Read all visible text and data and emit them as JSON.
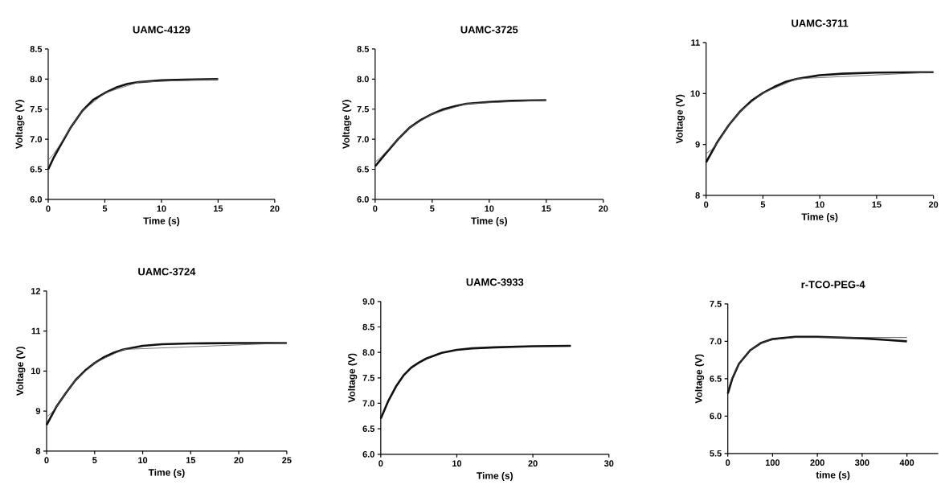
{
  "chart_data": [
    {
      "type": "line",
      "title": "UAMC-4129",
      "xlabel": "Time (s)",
      "ylabel": "Voltage  (V)",
      "xlim": [
        0,
        20
      ],
      "ylim": [
        6.0,
        8.5
      ],
      "xticks": [
        0,
        5,
        10,
        15,
        20
      ],
      "yticks": [
        {
          "value": 6.0,
          "label": "6.0"
        },
        {
          "value": 6.5,
          "label": "6.5"
        },
        {
          "value": 7.0,
          "label": "7.0"
        },
        {
          "value": 7.5,
          "label": "7.5"
        },
        {
          "value": 8.0,
          "label": "8.0"
        },
        {
          "value": 8.5,
          "label": "8.5"
        }
      ],
      "series": [
        {
          "color": "#111111",
          "x": [
            0,
            0.5,
            1,
            2,
            3,
            4,
            5,
            6,
            7,
            8,
            10,
            12,
            15
          ],
          "values": [
            6.5,
            6.7,
            6.87,
            7.2,
            7.47,
            7.66,
            7.77,
            7.86,
            7.92,
            7.95,
            7.98,
            7.99,
            8.0
          ]
        },
        {
          "color": "#666666",
          "x": [
            0,
            0.5,
            1,
            2,
            3,
            5,
            8,
            15
          ],
          "values": [
            6.65,
            6.76,
            6.9,
            7.2,
            7.47,
            7.77,
            7.95,
            8.0
          ]
        }
      ]
    },
    {
      "type": "line",
      "title": "UAMC-3725",
      "xlabel": "Time (s)",
      "ylabel": "Voltage (V)",
      "xlim": [
        0,
        20
      ],
      "ylim": [
        6.0,
        8.5
      ],
      "xticks": [
        0,
        5,
        10,
        15,
        20
      ],
      "yticks": [
        {
          "value": 6.0,
          "label": "6.0"
        },
        {
          "value": 6.5,
          "label": "6.5"
        },
        {
          "value": 7.0,
          "label": "7.0"
        },
        {
          "value": 7.5,
          "label": "7.5"
        },
        {
          "value": 8.0,
          "label": "8.0"
        },
        {
          "value": 8.5,
          "label": "8.5"
        }
      ],
      "series": [
        {
          "color": "#111111",
          "x": [
            0,
            1,
            2,
            3,
            4,
            5,
            6,
            7,
            8,
            10,
            12,
            15
          ],
          "values": [
            6.55,
            6.78,
            7.0,
            7.19,
            7.32,
            7.42,
            7.5,
            7.55,
            7.59,
            7.62,
            7.64,
            7.65
          ]
        },
        {
          "color": "#666666",
          "x": [
            0,
            0.5,
            1,
            2,
            3,
            5,
            8,
            15
          ],
          "values": [
            6.62,
            6.7,
            6.8,
            7.0,
            7.19,
            7.42,
            7.59,
            7.65
          ]
        }
      ]
    },
    {
      "type": "line",
      "title": "UAMC-3711",
      "xlabel": "Time (s)",
      "ylabel": "Voltage (V)",
      "xlim": [
        0,
        20
      ],
      "ylim": [
        8,
        11
      ],
      "xticks": [
        0,
        5,
        10,
        15,
        20
      ],
      "yticks": [
        8,
        9,
        10,
        11
      ],
      "series": [
        {
          "color": "#111111",
          "x": [
            0,
            1,
            2,
            3,
            4,
            5,
            6,
            7,
            8,
            10,
            12,
            15,
            20
          ],
          "values": [
            8.65,
            9.05,
            9.38,
            9.65,
            9.86,
            10.01,
            10.13,
            10.23,
            10.29,
            10.36,
            10.39,
            10.41,
            10.42
          ]
        },
        {
          "color": "#666666",
          "x": [
            0,
            0.5,
            1,
            2,
            3,
            5,
            8,
            20
          ],
          "values": [
            8.82,
            8.9,
            9.03,
            9.38,
            9.65,
            10.01,
            10.29,
            10.42
          ]
        }
      ]
    },
    {
      "type": "line",
      "title": "UAMC-3724",
      "xlabel": "Time (s)",
      "ylabel": "Voltage (V)",
      "xlim": [
        0,
        25
      ],
      "ylim": [
        8,
        12
      ],
      "xticks": [
        0,
        5,
        10,
        15,
        20,
        25
      ],
      "yticks": [
        8,
        9,
        10,
        11,
        12
      ],
      "series": [
        {
          "color": "#111111",
          "x": [
            0,
            1,
            2,
            3,
            4,
            5,
            6,
            7,
            8,
            10,
            12,
            15,
            20,
            25
          ],
          "values": [
            8.65,
            9.1,
            9.45,
            9.77,
            10.01,
            10.2,
            10.35,
            10.46,
            10.54,
            10.63,
            10.67,
            10.69,
            10.7,
            10.7
          ]
        },
        {
          "color": "#666666",
          "x": [
            0,
            0.5,
            1,
            2,
            3,
            5,
            8,
            25
          ],
          "values": [
            8.85,
            8.95,
            9.1,
            9.45,
            9.77,
            10.2,
            10.54,
            10.7
          ]
        }
      ]
    },
    {
      "type": "line",
      "title": "UAMC-3933",
      "xlabel": "Time (s)",
      "ylabel": "Voltage (V)",
      "xlim": [
        0,
        30
      ],
      "ylim": [
        6.0,
        9.0
      ],
      "xticks": [
        0,
        10,
        20,
        30
      ],
      "yticks": [
        {
          "value": 6.0,
          "label": "6.0"
        },
        {
          "value": 6.5,
          "label": "6.5"
        },
        {
          "value": 7.0,
          "label": "7.0"
        },
        {
          "value": 7.5,
          "label": "7.5"
        },
        {
          "value": 8.0,
          "label": "8.0"
        },
        {
          "value": 8.5,
          "label": "8.5"
        },
        {
          "value": 9.0,
          "label": "9.0"
        }
      ],
      "series": [
        {
          "color": "#111111",
          "x": [
            0,
            1,
            2,
            3,
            4,
            5,
            6,
            8,
            10,
            12,
            15,
            20,
            25
          ],
          "values": [
            6.7,
            7.05,
            7.33,
            7.55,
            7.7,
            7.8,
            7.88,
            7.99,
            8.05,
            8.08,
            8.1,
            8.12,
            8.13
          ]
        }
      ]
    },
    {
      "type": "line",
      "title": "r-TCO-PEG-4",
      "xlabel": "time (s)",
      "ylabel": "Voltage (V)",
      "xlim": [
        0,
        470
      ],
      "ylim": [
        5.5,
        7.5
      ],
      "xticks": [
        0,
        100,
        200,
        300,
        400
      ],
      "yticks": [
        {
          "value": 5.5,
          "label": "5.5"
        },
        {
          "value": 6.0,
          "label": "6.0"
        },
        {
          "value": 6.5,
          "label": "6.5"
        },
        {
          "value": 7.0,
          "label": "7.0"
        },
        {
          "value": 7.5,
          "label": "7.5"
        }
      ],
      "series": [
        {
          "color": "#111111",
          "x": [
            0,
            10,
            25,
            50,
            75,
            100,
            150,
            200,
            250,
            300,
            350,
            400
          ],
          "values": [
            6.3,
            6.5,
            6.7,
            6.88,
            6.98,
            7.03,
            7.06,
            7.06,
            7.05,
            7.04,
            7.02,
            7.0
          ]
        },
        {
          "color": "#444444",
          "x": [
            0,
            10,
            25,
            50,
            75,
            100,
            150,
            200,
            300,
            400
          ],
          "values": [
            6.35,
            6.52,
            6.7,
            6.88,
            6.98,
            7.02,
            7.05,
            7.05,
            7.05,
            7.05
          ]
        }
      ]
    }
  ]
}
